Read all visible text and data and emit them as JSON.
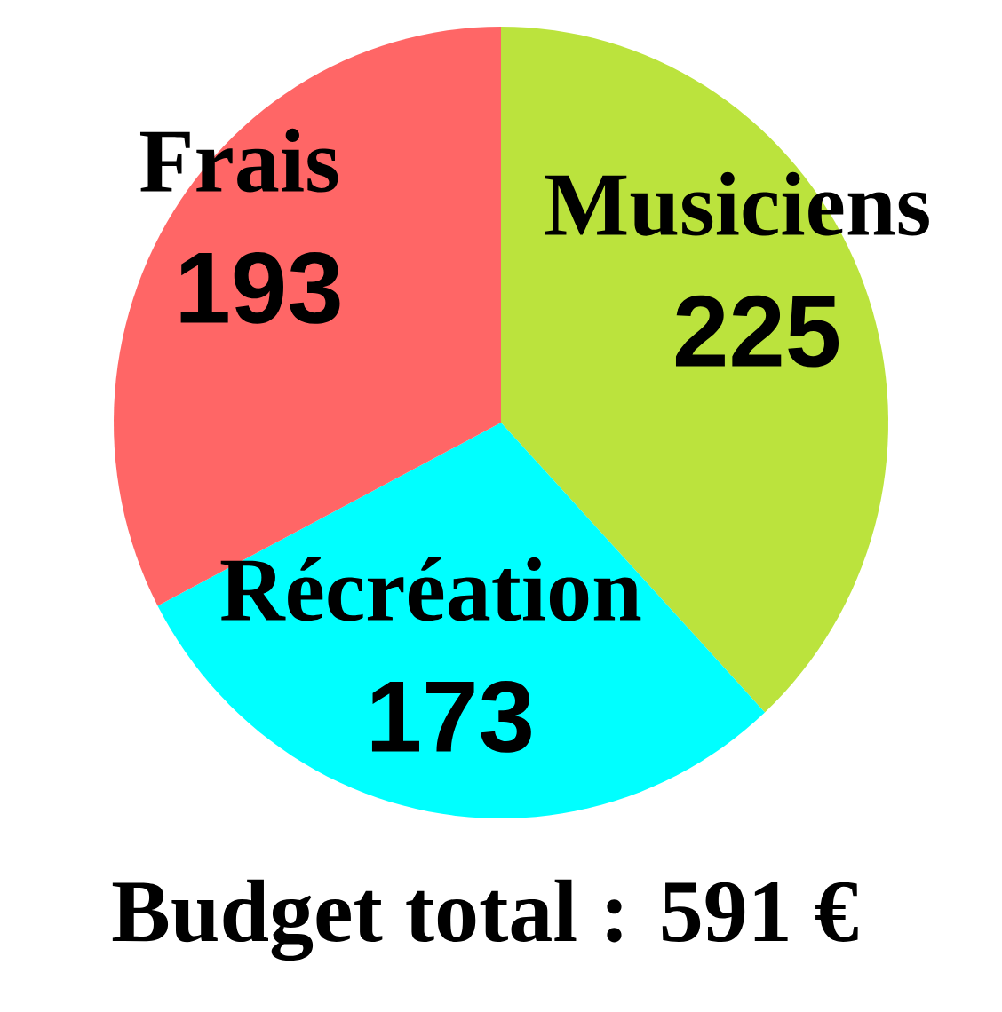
{
  "chart_data": {
    "type": "pie",
    "title": "Budget total : 591 €",
    "categories": [
      "Musiciens",
      "Récréation",
      "Frais"
    ],
    "values": [
      225,
      173,
      193
    ],
    "colors": [
      "#bbe33d",
      "#00ffff",
      "#ff6666"
    ],
    "data_labels": true
  }
}
